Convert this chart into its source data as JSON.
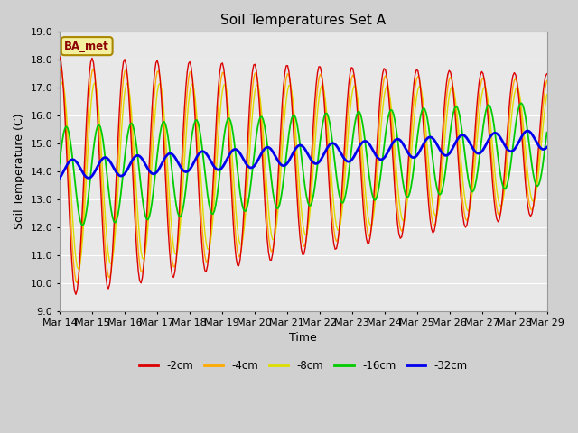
{
  "title": "Soil Temperatures Set A",
  "xlabel": "Time",
  "ylabel": "Soil Temperature (C)",
  "ylim": [
    9.0,
    19.0
  ],
  "yticks": [
    9.0,
    10.0,
    11.0,
    12.0,
    13.0,
    14.0,
    15.0,
    16.0,
    17.0,
    18.0,
    19.0
  ],
  "x_tick_labels": [
    "Mar 14",
    "Mar 15",
    "Mar 16",
    "Mar 17",
    "Mar 18",
    "Mar 19",
    "Mar 20",
    "Mar 21",
    "Mar 22",
    "Mar 23",
    "Mar 24",
    "Mar 25",
    "Mar 26",
    "Mar 27",
    "Mar 28",
    "Mar 29"
  ],
  "colors": {
    "-2cm": "#dd0000",
    "-4cm": "#ffaa00",
    "-8cm": "#dddd00",
    "-16cm": "#00cc00",
    "-32cm": "#0000ee"
  },
  "annotation": "BA_met",
  "n_days": 15,
  "hours_per_day": 24
}
